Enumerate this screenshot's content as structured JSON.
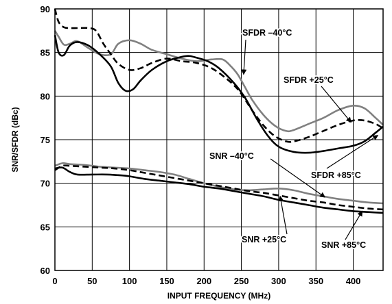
{
  "chart_data": {
    "type": "line",
    "title": "",
    "xlabel": "INPUT FREQUENCY (MHz)",
    "ylabel": "SNR/SFDR (dBc)",
    "xlim": [
      0,
      440
    ],
    "ylim": [
      60,
      90
    ],
    "xticks": [
      0,
      50,
      100,
      150,
      200,
      250,
      300,
      350,
      400
    ],
    "yticks": [
      60,
      65,
      70,
      75,
      80,
      85,
      90
    ],
    "grid": true,
    "legend": "none",
    "series": [
      {
        "name": "SFDR –40°C",
        "color": "#808080",
        "dash": "solid",
        "x": [
          0,
          5,
          12,
          20,
          30,
          45,
          60,
          75,
          85,
          100,
          115,
          130,
          150,
          170,
          190,
          210,
          225,
          235,
          245,
          255,
          265,
          280,
          295,
          310,
          320,
          340,
          360,
          380,
          400,
          415,
          430,
          440
        ],
        "y": [
          87.5,
          86.8,
          85.9,
          86.0,
          86.3,
          85.5,
          84.8,
          84.8,
          86.0,
          86.4,
          86.0,
          85.3,
          84.8,
          84.3,
          84.0,
          84.2,
          84.2,
          83.5,
          82.5,
          81.0,
          79.5,
          77.8,
          76.6,
          76.0,
          76.1,
          76.8,
          77.5,
          78.4,
          78.9,
          78.6,
          77.5,
          76.7
        ]
      },
      {
        "name": "SFDR +25°C",
        "color": "#000000",
        "dash": "dash",
        "x": [
          0,
          5,
          12,
          20,
          30,
          45,
          55,
          65,
          75,
          85,
          100,
          115,
          130,
          150,
          170,
          190,
          210,
          230,
          245,
          255,
          265,
          280,
          295,
          310,
          320,
          340,
          360,
          380,
          400,
          415,
          430,
          440
        ],
        "y": [
          90.0,
          88.5,
          87.9,
          87.8,
          87.8,
          87.8,
          87.5,
          86.0,
          84.8,
          83.7,
          83.0,
          83.2,
          83.8,
          84.3,
          84.0,
          83.8,
          83.2,
          82.0,
          80.8,
          79.6,
          78.3,
          76.6,
          75.4,
          74.8,
          74.8,
          75.3,
          76.0,
          76.7,
          77.2,
          77.2,
          76.8,
          76.3
        ]
      },
      {
        "name": "SFDR +85°C",
        "color": "#000000",
        "dash": "solid",
        "x": [
          0,
          5,
          12,
          20,
          30,
          45,
          60,
          75,
          85,
          95,
          105,
          115,
          130,
          150,
          170,
          180,
          190,
          205,
          220,
          240,
          255,
          270,
          285,
          300,
          320,
          340,
          360,
          380,
          400,
          415,
          430,
          440
        ],
        "y": [
          87.0,
          85.0,
          84.7,
          85.8,
          86.2,
          85.8,
          84.8,
          83.4,
          81.5,
          80.6,
          80.8,
          81.8,
          83.0,
          84.0,
          84.5,
          84.6,
          84.4,
          84.0,
          83.2,
          81.5,
          79.8,
          77.5,
          75.5,
          74.2,
          73.6,
          73.5,
          73.7,
          74.0,
          74.3,
          74.8,
          75.8,
          76.5
        ]
      },
      {
        "name": "SNR –40°C",
        "color": "#808080",
        "dash": "solid",
        "x": [
          0,
          10,
          20,
          40,
          60,
          80,
          100,
          120,
          140,
          160,
          180,
          200,
          220,
          240,
          260,
          280,
          300,
          320,
          340,
          360,
          380,
          400,
          420,
          440
        ],
        "y": [
          72.0,
          72.3,
          72.2,
          72.1,
          71.9,
          71.8,
          71.7,
          71.5,
          71.3,
          71.0,
          70.5,
          70.0,
          69.6,
          69.3,
          69.2,
          69.3,
          69.4,
          69.2,
          68.8,
          68.5,
          68.2,
          68.0,
          67.8,
          67.7
        ]
      },
      {
        "name": "SNR +25°C",
        "color": "#000000",
        "dash": "dash",
        "x": [
          0,
          10,
          20,
          40,
          60,
          80,
          100,
          120,
          140,
          160,
          180,
          200,
          220,
          240,
          260,
          280,
          300,
          320,
          340,
          360,
          380,
          400,
          420,
          440
        ],
        "y": [
          71.5,
          72.0,
          72.0,
          71.9,
          71.8,
          71.7,
          71.5,
          71.2,
          70.9,
          70.6,
          70.3,
          70.0,
          69.7,
          69.4,
          69.1,
          68.9,
          68.6,
          68.3,
          68.0,
          67.8,
          67.5,
          67.3,
          67.1,
          67.0
        ]
      },
      {
        "name": "SNR +85°C",
        "color": "#000000",
        "dash": "solid",
        "x": [
          0,
          10,
          20,
          30,
          50,
          70,
          90,
          100,
          120,
          140,
          160,
          180,
          200,
          220,
          240,
          260,
          280,
          300,
          320,
          340,
          360,
          380,
          400,
          420,
          440
        ],
        "y": [
          71.7,
          71.8,
          71.3,
          71.0,
          71.0,
          71.0,
          70.9,
          70.8,
          70.5,
          70.3,
          70.1,
          69.9,
          69.6,
          69.4,
          69.1,
          68.8,
          68.5,
          68.1,
          67.8,
          67.5,
          67.2,
          67.0,
          66.8,
          66.7,
          66.6
        ]
      }
    ],
    "annotations": [
      {
        "text": "SFDR –40°C",
        "target": [
          253,
          82.5
        ]
      },
      {
        "text": "SFDR +25°C",
        "target": [
          397,
          77.0
        ]
      },
      {
        "text": "SFDR +85°C",
        "target": [
          433,
          75.5
        ]
      },
      {
        "text": "SNR –40°C",
        "target": [
          362,
          68.4
        ]
      },
      {
        "text": "SNR +25°C",
        "target": [
          302,
          68.5
        ]
      },
      {
        "text": "SNR +85°C",
        "target": [
          412,
          66.8
        ]
      }
    ]
  }
}
